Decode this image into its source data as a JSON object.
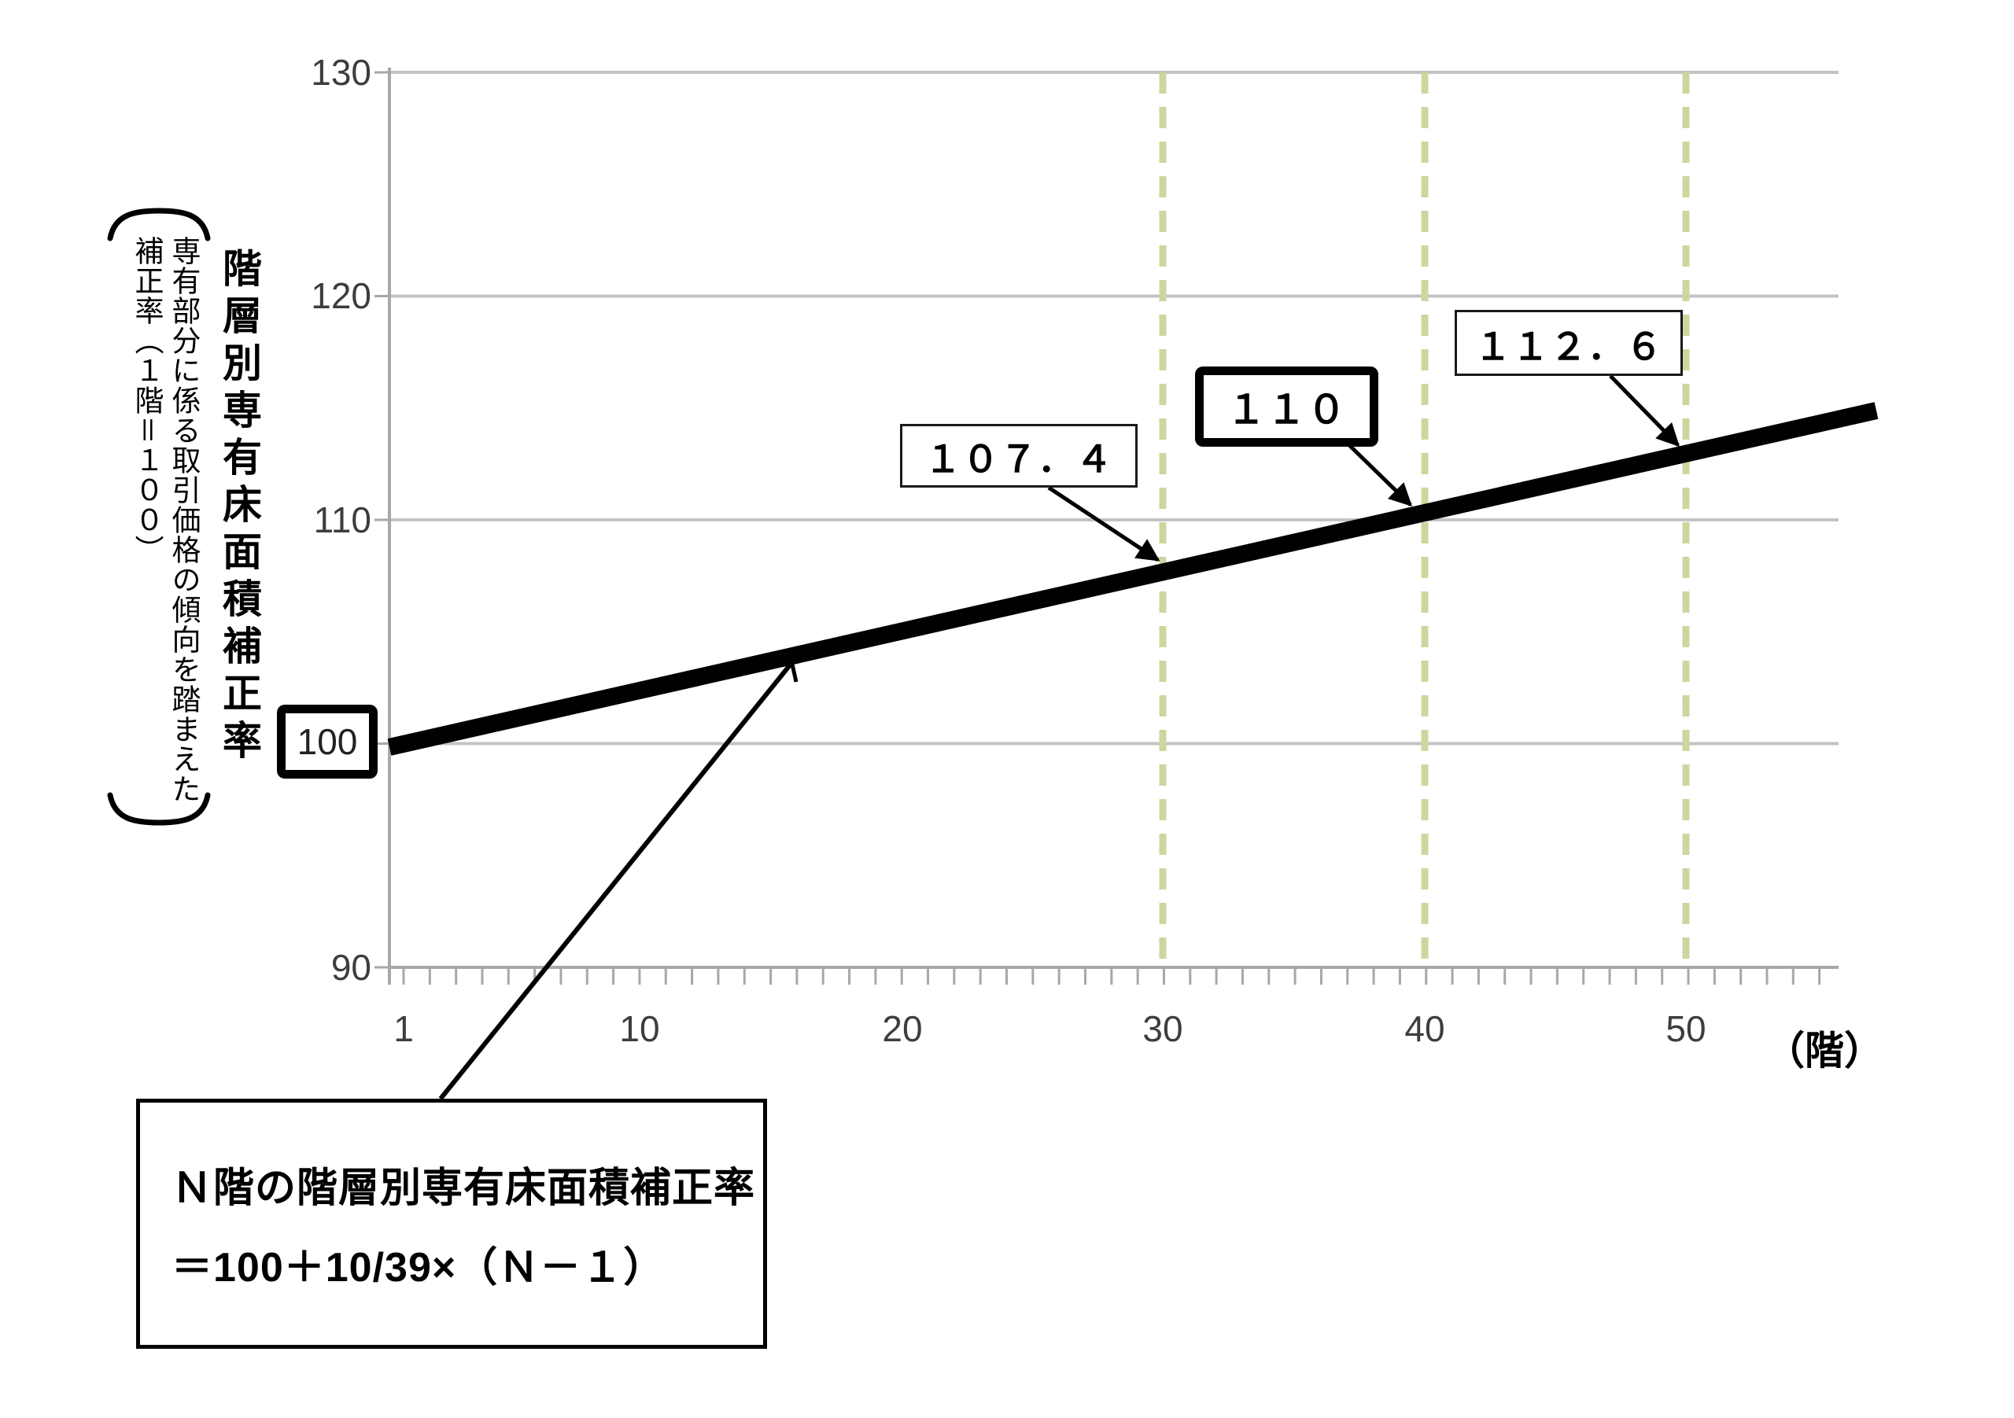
{
  "chart_data": {
    "type": "line",
    "title": "階層別専有床面積補正率",
    "title_note": "専有部分に係る取引価格の傾向を踏まえた補正率（１階＝１００）",
    "xlabel": "（階）",
    "x_ticks": [
      "1",
      "10",
      "20",
      "30",
      "40",
      "50"
    ],
    "y_ticks": [
      "130",
      "120",
      "110",
      "100",
      "90"
    ],
    "xlim": [
      1,
      56
    ],
    "ylim": [
      90,
      130
    ],
    "grid": "horizontal-only",
    "line_color": "#000000",
    "dashed_guides": {
      "x": [
        30,
        40,
        50
      ],
      "color": "#cbd79e"
    },
    "series": [
      {
        "name": "階層別専有床面積補正率",
        "formula": "100 + 10/39 × (N − 1)",
        "x": [
          1,
          30,
          40,
          50
        ],
        "values": [
          100,
          107.4,
          110,
          112.6
        ]
      }
    ],
    "labeled_points": [
      {
        "x": 1,
        "value": 100,
        "label": "100",
        "emphasized": true
      },
      {
        "x": 30,
        "value": 107.4,
        "label": "１０７．４",
        "emphasized": false
      },
      {
        "x": 40,
        "value": 110,
        "label": "１１０",
        "emphasized": true
      },
      {
        "x": 50,
        "value": 112.6,
        "label": "１１２．６",
        "emphasized": false
      }
    ]
  },
  "annotations": {
    "label_100": "100",
    "label_30": "１０７．４",
    "label_40": "１１０",
    "label_50": "１１２．６"
  },
  "axis": {
    "x_unit": "（階）"
  },
  "side_label": {
    "main": "階層別専有床面積補正率",
    "note_line1": "専有部分に係る取引価格の傾向を踏まえた",
    "note_line2": "補正率（１階＝１００）"
  },
  "formula_box": {
    "line1": "Ｎ階の階層別専有床面積補正率",
    "line2": "＝100＋10/39×（Ｎ－１）"
  }
}
